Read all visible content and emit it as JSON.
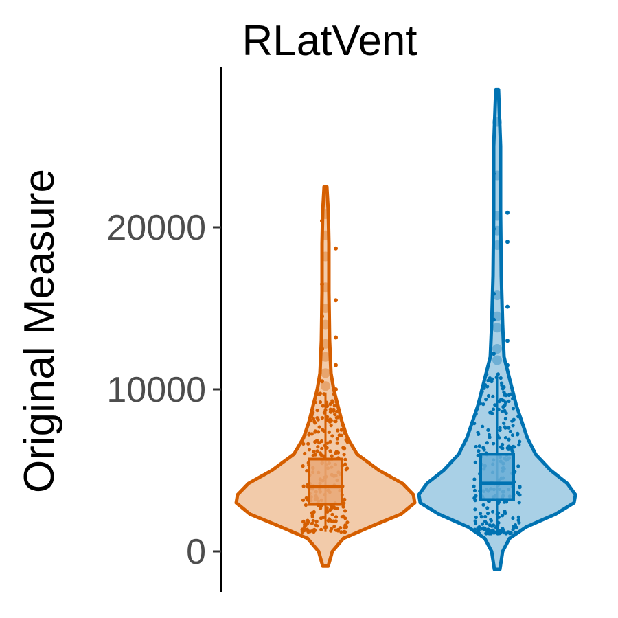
{
  "chart_data": {
    "type": "violin",
    "title": "RLatVent",
    "xlabel": "",
    "ylabel": "Original Measure",
    "ylim": [
      -2500,
      29500
    ],
    "yticks": [
      0,
      10000,
      20000
    ],
    "grid": false,
    "legend": "none",
    "groups": [
      {
        "color": "#D55E00",
        "fill": "#F2CBAA",
        "box_fill": "#E9A877",
        "range": [
          -900,
          22500
        ],
        "quartiles": {
          "q1": 2900,
          "median": 4000,
          "q3": 5700
        },
        "whiskers": [
          1200,
          9800
        ],
        "density": [
          [
            -900,
            4
          ],
          [
            0,
            10
          ],
          [
            800,
            26
          ],
          [
            1600,
            70
          ],
          [
            2300,
            110
          ],
          [
            3000,
            130
          ],
          [
            3500,
            128
          ],
          [
            4200,
            112
          ],
          [
            5000,
            78
          ],
          [
            6000,
            46
          ],
          [
            7000,
            32
          ],
          [
            8000,
            24
          ],
          [
            9000,
            18
          ],
          [
            10000,
            12
          ],
          [
            11000,
            8
          ],
          [
            13000,
            6
          ],
          [
            16000,
            5
          ],
          [
            19000,
            5
          ],
          [
            21000,
            4
          ],
          [
            22500,
            2
          ]
        ],
        "outliers": [
          20800,
          20400,
          19500,
          18700,
          18200,
          16500,
          16300,
          15500,
          15000,
          14500,
          14000,
          13200,
          12800,
          12500,
          12000,
          11500,
          11000,
          10500,
          10200,
          10000
        ]
      },
      {
        "color": "#0072B2",
        "fill": "#A9D0E6",
        "box_fill": "#6AAED6",
        "range": [
          -1100,
          28500
        ],
        "quartiles": {
          "q1": 3200,
          "median": 4200,
          "q3": 6000
        },
        "whiskers": [
          1100,
          11000
        ],
        "density": [
          [
            -1100,
            4
          ],
          [
            0,
            8
          ],
          [
            800,
            18
          ],
          [
            1500,
            42
          ],
          [
            2300,
            85
          ],
          [
            3000,
            112
          ],
          [
            3500,
            114
          ],
          [
            4200,
            102
          ],
          [
            5000,
            78
          ],
          [
            6000,
            56
          ],
          [
            7000,
            44
          ],
          [
            8000,
            36
          ],
          [
            9000,
            28
          ],
          [
            10000,
            22
          ],
          [
            11000,
            16
          ],
          [
            12000,
            10
          ],
          [
            14000,
            8
          ],
          [
            17000,
            6
          ],
          [
            21000,
            5
          ],
          [
            25000,
            5
          ],
          [
            28500,
            2
          ]
        ],
        "outliers": [
          26500,
          23300,
          23200,
          20900,
          20700,
          19900,
          19800,
          19100,
          18900,
          15900,
          15800,
          15100,
          14500,
          14300,
          13800,
          13000,
          12500,
          12200,
          11800,
          11500
        ]
      }
    ]
  }
}
